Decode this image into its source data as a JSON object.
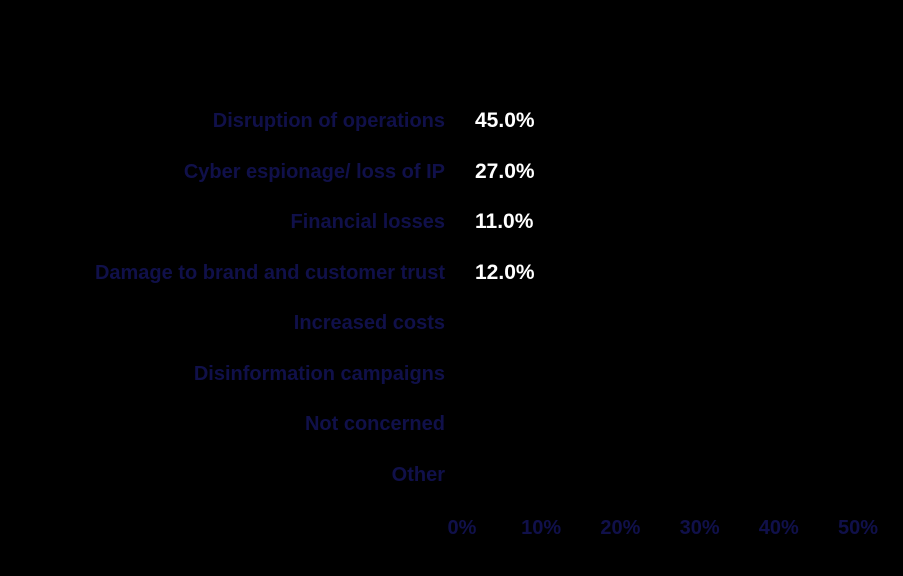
{
  "chart_data": {
    "type": "bar",
    "orientation": "horizontal",
    "title": "",
    "xlabel": "",
    "ylabel": "",
    "categories": [
      "Disruption of operations",
      "Cyber espionage/ loss of IP",
      "Financial losses",
      "Damage to brand and customer trust",
      "Increased costs",
      "Disinformation campaigns",
      "Not concerned",
      "Other"
    ],
    "values": [
      45.0,
      27.0,
      11.0,
      12.0,
      null,
      null,
      null,
      null
    ],
    "value_labels": [
      "45.0%",
      "27.0%",
      "11.0%",
      "12.0%",
      "",
      "",
      "",
      ""
    ],
    "x_ticks": [
      "0%",
      "10%",
      "20%",
      "30%",
      "40%",
      "50%"
    ],
    "xlim": [
      0,
      50
    ],
    "grid": false,
    "legend": "none",
    "bars_visible": false,
    "colors": {
      "background": "#000000",
      "category_label": "#10104a",
      "tick_label": "#10104a",
      "value_label": "#ffffff",
      "bar_fill": "#000000"
    }
  }
}
